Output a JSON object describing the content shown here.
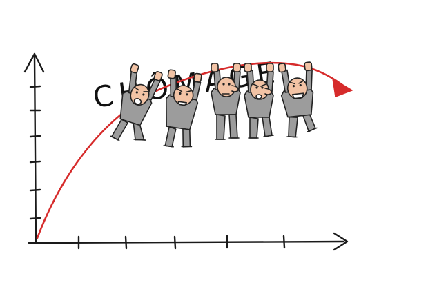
{
  "illustration": {
    "title": "CHÔMAGE",
    "colors": {
      "curve": "#d62b2b",
      "axis": "#1a1a1a",
      "figure_body": "#9c9c9c",
      "figure_skin": "#f2c3a5",
      "outline": "#222222"
    }
  }
}
